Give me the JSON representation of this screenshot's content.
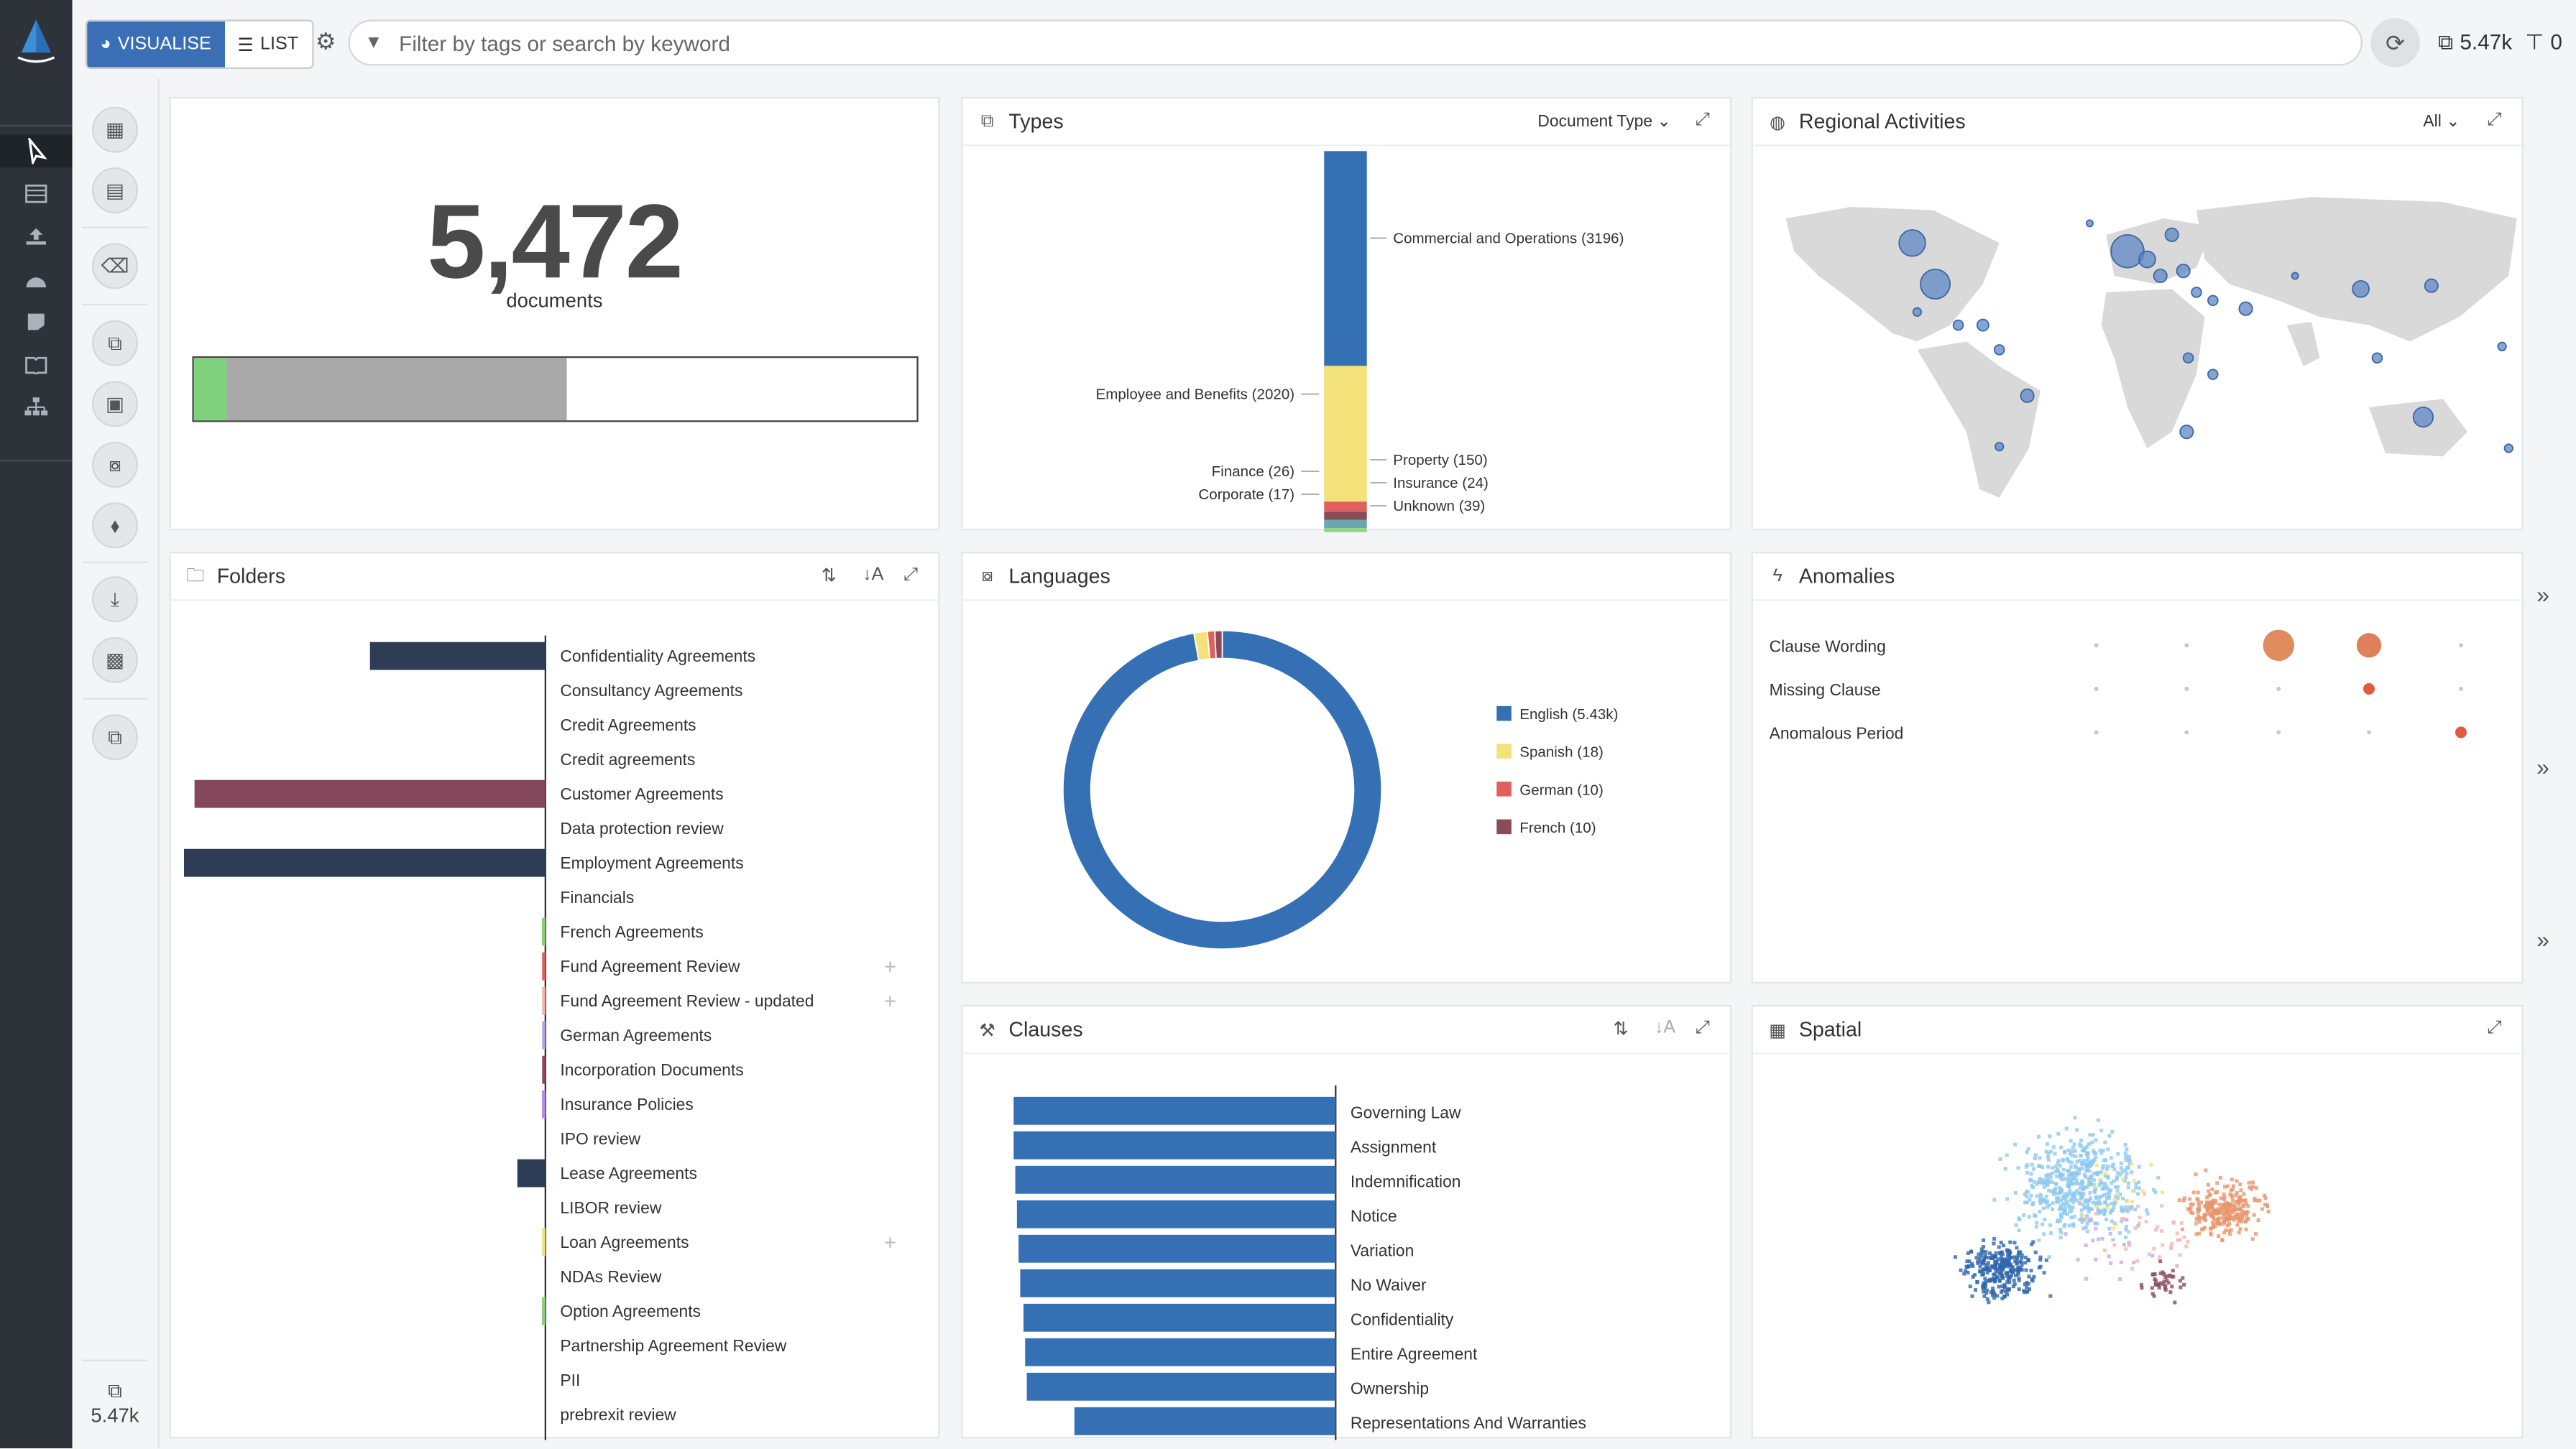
{
  "toolbar": {
    "visualise_label": "VISUALISE",
    "list_label": "LIST",
    "search_placeholder": "Filter by tags or search by keyword",
    "doc_count": "5.47k",
    "filter_count": "0"
  },
  "sidebar": {
    "bottom_count": "5.47k"
  },
  "stats_panel": {
    "count": "5,472",
    "label": "documents",
    "progress": {
      "green_fraction": 0.045,
      "grey_fraction": 0.47
    }
  },
  "types_panel": {
    "title": "Types",
    "dropdown": "Document Type",
    "chart_data": {
      "type": "bar",
      "stacked": true,
      "categories": [
        "Commercial and Operations",
        "Employee and Benefits",
        "Property",
        "Finance",
        "Insurance",
        "Corporate",
        "Unknown"
      ],
      "values": [
        3196,
        2020,
        150,
        26,
        24,
        17,
        39
      ],
      "labels": [
        "Commercial and Operations (3196)",
        "Employee and Benefits (2020)",
        "Property (150)",
        "Finance (26)",
        "Insurance (24)",
        "Corporate (17)",
        "Unknown (39)"
      ],
      "colors": [
        "#3570b5",
        "#f3e27a",
        "#e0605e",
        "#8a4b5b",
        "#6aa5b0",
        "#93d37f",
        "#d6d6d6"
      ]
    }
  },
  "regional_panel": {
    "title": "Regional Activities",
    "dropdown": "All"
  },
  "folders_panel": {
    "title": "Folders",
    "chart_data": {
      "type": "bar",
      "orientation": "horizontal",
      "categories": [
        "Confidentiality Agreements",
        "Consultancy Agreements",
        "Credit Agreements",
        "Credit agreements",
        "Customer Agreements",
        "Data protection review",
        "Employment Agreements",
        "Financials",
        "French Agreements",
        "Fund Agreement Review",
        "Fund Agreement Review - updated",
        "German Agreements",
        "Incorporation Documents",
        "Insurance Policies",
        "IPO review",
        "Lease Agreements",
        "LIBOR review",
        "Loan Agreements",
        "NDAs Review",
        "Option Agreements",
        "Partnership Agreement Review",
        "PII",
        "prebrexit review"
      ],
      "values": [
        500,
        0,
        0,
        0,
        1000,
        0,
        1030,
        0,
        10,
        5,
        5,
        5,
        5,
        10,
        0,
        80,
        0,
        5,
        0,
        10,
        0,
        0,
        0
      ],
      "colors": [
        "#2f3c55",
        "#2f3c55",
        "#2f3c55",
        "#2f3c55",
        "#85475b",
        "#85475b",
        "#2f3c55",
        "#2f3c55",
        "#8dcf7d",
        "#e0605e",
        "#f0b5ac",
        "#b9a2e0",
        "#8a4b5b",
        "#b48fe0",
        "#2f3c55",
        "#2f3c55",
        "#2f3c55",
        "#f3e27a",
        "#2f3c55",
        "#8dcf7d",
        "#2f3c55",
        "#2f3c55",
        "#8dcf7d"
      ],
      "has_plus": [
        false,
        false,
        false,
        false,
        false,
        false,
        false,
        false,
        false,
        true,
        true,
        false,
        false,
        false,
        false,
        false,
        false,
        true,
        false,
        false,
        false,
        false,
        false
      ]
    }
  },
  "languages_panel": {
    "title": "Languages",
    "chart_data": {
      "type": "pie",
      "donut": true,
      "categories": [
        "English",
        "Spanish",
        "German",
        "French"
      ],
      "values": [
        5430,
        18,
        10,
        10
      ],
      "labels": [
        "English (5.43k)",
        "Spanish (18)",
        "German (10)",
        "French (10)"
      ],
      "colors": [
        "#3570b5",
        "#f3e27a",
        "#e0605e",
        "#8a4b5b"
      ]
    }
  },
  "anomalies_panel": {
    "title": "Anomalies",
    "rows": [
      "Clause Wording",
      "Missing Clause",
      "Anomalous Period"
    ],
    "chart_data": {
      "type": "scatter",
      "rows": [
        "Clause Wording",
        "Missing Clause",
        "Anomalous Period"
      ],
      "columns": 5,
      "cells": [
        [
          0,
          0,
          3,
          2,
          0
        ],
        [
          0,
          0,
          0,
          1,
          0
        ],
        [
          0,
          0,
          0,
          0,
          1
        ]
      ]
    }
  },
  "clauses_panel": {
    "title": "Clauses",
    "chart_data": {
      "type": "bar",
      "orientation": "horizontal",
      "categories": [
        "Governing Law",
        "Assignment",
        "Indemnification",
        "Notice",
        "Variation",
        "No Waiver",
        "Confidentiality",
        "Entire Agreement",
        "Ownership",
        "Representations And Warranties"
      ],
      "values": [
        196,
        196,
        195,
        194,
        193,
        192,
        190,
        189,
        188,
        159
      ],
      "color": "#3570b5"
    }
  },
  "spatial_panel": {
    "title": "Spatial"
  }
}
